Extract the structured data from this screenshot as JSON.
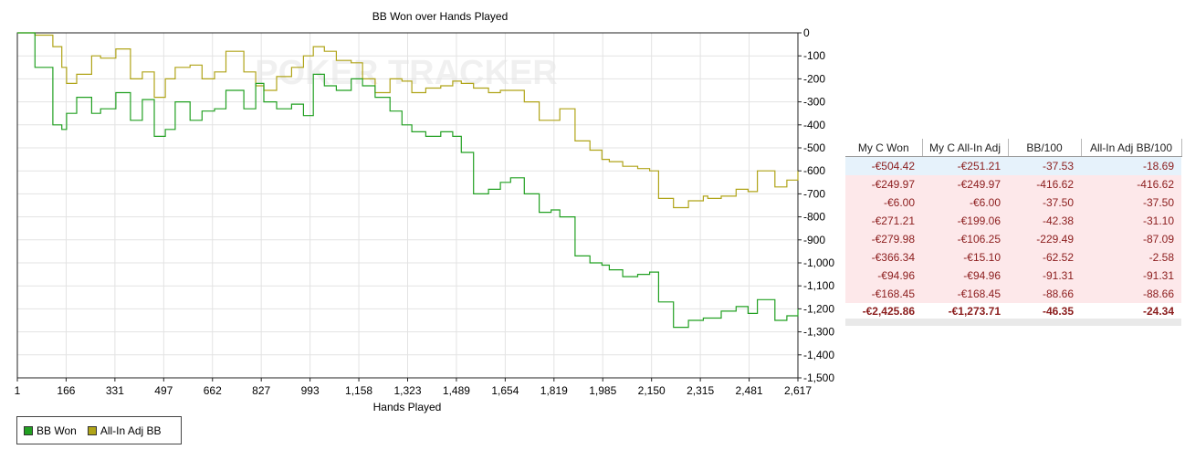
{
  "chart_data": {
    "type": "line",
    "title": "BB Won over Hands Played",
    "xlabel": "Hands Played",
    "ylabel": "",
    "xlim": [
      1,
      2617
    ],
    "ylim": [
      -1500,
      0
    ],
    "x_ticks": [
      "1",
      "166",
      "331",
      "497",
      "662",
      "827",
      "993",
      "1,158",
      "1,323",
      "1,489",
      "1,654",
      "1,819",
      "1,985",
      "2,150",
      "2,315",
      "2,481",
      "2,617"
    ],
    "y_ticks": [
      {
        "value": 0,
        "label": "0"
      },
      {
        "value": -100,
        "label": "-100"
      },
      {
        "value": -200,
        "label": "-200"
      },
      {
        "value": -300,
        "label": "-300"
      },
      {
        "value": -400,
        "label": "-400"
      },
      {
        "value": -500,
        "label": "-500"
      },
      {
        "value": -600,
        "label": "-600"
      },
      {
        "value": -700,
        "label": "-700"
      },
      {
        "value": -800,
        "label": "-800"
      },
      {
        "value": -900,
        "label": "-900"
      },
      {
        "value": -1000,
        "label": "-1,000"
      },
      {
        "value": -1100,
        "label": "-1,100"
      },
      {
        "value": -1200,
        "label": "-1,200"
      },
      {
        "value": -1300,
        "label": "-1,300"
      },
      {
        "value": -1400,
        "label": "-1,400"
      },
      {
        "value": -1500,
        "label": "-1,500"
      }
    ],
    "grid": true,
    "legend_position": "bottom-left",
    "watermark": "POKER TRACKER",
    "series": [
      {
        "name": "BB Won",
        "color": "#22a022",
        "x": [
          1,
          60,
          120,
          150,
          166,
          200,
          250,
          280,
          331,
          380,
          420,
          460,
          497,
          530,
          580,
          620,
          662,
          700,
          760,
          800,
          827,
          870,
          920,
          960,
          993,
          1030,
          1070,
          1120,
          1158,
          1200,
          1250,
          1290,
          1323,
          1370,
          1420,
          1460,
          1489,
          1530,
          1580,
          1620,
          1654,
          1700,
          1750,
          1790,
          1819,
          1870,
          1920,
          1960,
          1985,
          2030,
          2080,
          2120,
          2150,
          2200,
          2250,
          2300,
          2315,
          2360,
          2410,
          2450,
          2481,
          2540,
          2580,
          2617
        ],
        "values": [
          0,
          -150,
          -400,
          -420,
          -350,
          -280,
          -350,
          -330,
          -260,
          -380,
          -290,
          -450,
          -420,
          -300,
          -380,
          -340,
          -330,
          -250,
          -330,
          -220,
          -300,
          -330,
          -310,
          -360,
          -180,
          -230,
          -250,
          -200,
          -230,
          -280,
          -340,
          -400,
          -430,
          -450,
          -430,
          -450,
          -520,
          -700,
          -680,
          -650,
          -630,
          -700,
          -780,
          -770,
          -800,
          -970,
          -1000,
          -1010,
          -1030,
          -1060,
          -1050,
          -1040,
          -1170,
          -1280,
          -1250,
          -1240,
          -1240,
          -1210,
          -1190,
          -1220,
          -1160,
          -1250,
          -1230,
          -1200
        ]
      },
      {
        "name": "All-In Adj BB",
        "color": "#b0a418",
        "x": [
          1,
          60,
          120,
          150,
          166,
          200,
          250,
          280,
          331,
          380,
          420,
          460,
          497,
          530,
          580,
          620,
          662,
          700,
          760,
          800,
          827,
          870,
          920,
          960,
          993,
          1030,
          1070,
          1120,
          1158,
          1200,
          1250,
          1290,
          1323,
          1370,
          1420,
          1460,
          1489,
          1530,
          1580,
          1620,
          1654,
          1700,
          1750,
          1790,
          1819,
          1870,
          1920,
          1960,
          1985,
          2030,
          2080,
          2120,
          2150,
          2200,
          2250,
          2300,
          2315,
          2360,
          2410,
          2450,
          2481,
          2540,
          2580,
          2617
        ],
        "values": [
          0,
          -10,
          -60,
          -150,
          -220,
          -180,
          -100,
          -110,
          -70,
          -200,
          -170,
          -280,
          -200,
          -150,
          -140,
          -200,
          -170,
          -80,
          -170,
          -230,
          -250,
          -190,
          -150,
          -100,
          -60,
          -80,
          -120,
          -130,
          -200,
          -260,
          -200,
          -210,
          -260,
          -240,
          -230,
          -210,
          -220,
          -240,
          -260,
          -250,
          -250,
          -300,
          -380,
          -380,
          -330,
          -470,
          -510,
          -550,
          -560,
          -580,
          -590,
          -600,
          -720,
          -760,
          -730,
          -710,
          -720,
          -710,
          -680,
          -690,
          -600,
          -670,
          -640,
          -600
        ]
      }
    ]
  },
  "legend": [
    {
      "label": "BB Won",
      "color": "#22a022"
    },
    {
      "label": "All-In Adj BB",
      "color": "#b0a418"
    }
  ],
  "stats_table": {
    "headers": [
      "My C Won",
      "My C All-In Adj",
      "BB/100",
      "All-In Adj BB/100"
    ],
    "rows": [
      [
        "-€504.42",
        "-€251.21",
        "-37.53",
        "-18.69"
      ],
      [
        "-€249.97",
        "-€249.97",
        "-416.62",
        "-416.62"
      ],
      [
        "-€6.00",
        "-€6.00",
        "-37.50",
        "-37.50"
      ],
      [
        "-€271.21",
        "-€199.06",
        "-42.38",
        "-31.10"
      ],
      [
        "-€279.98",
        "-€106.25",
        "-229.49",
        "-87.09"
      ],
      [
        "-€366.34",
        "-€15.10",
        "-62.52",
        "-2.58"
      ],
      [
        "-€94.96",
        "-€94.96",
        "-91.31",
        "-91.31"
      ],
      [
        "-€168.45",
        "-€168.45",
        "-88.66",
        "-88.66"
      ]
    ],
    "totals": [
      "-€2,425.86",
      "-€1,273.71",
      "-46.35",
      "-24.34"
    ]
  }
}
